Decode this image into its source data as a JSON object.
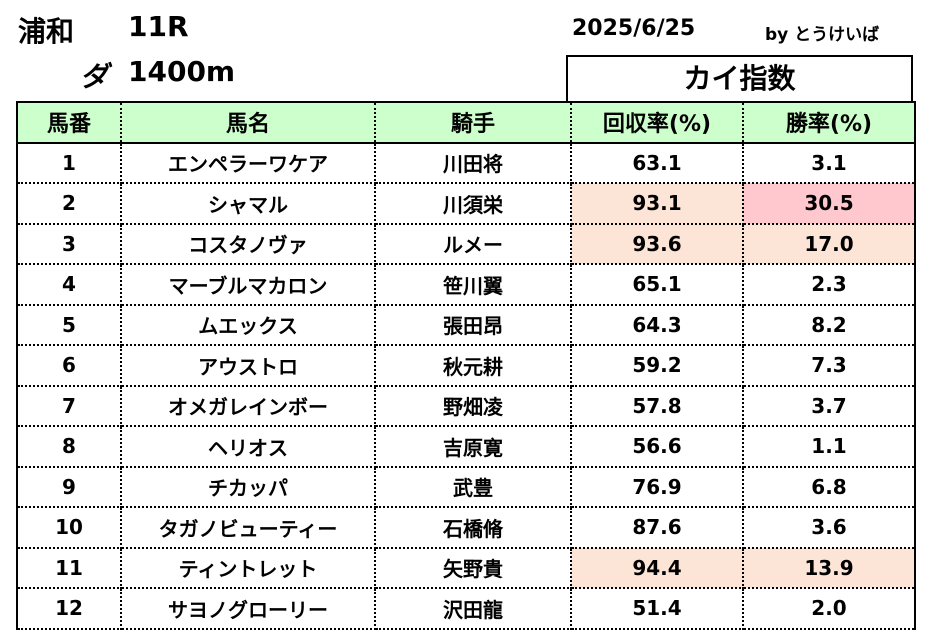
{
  "header": {
    "venue": "浦和",
    "race": "11R",
    "surface": "ダ",
    "distance": "1400m",
    "date": "2025/6/25",
    "byline": "by とうけいば",
    "index_title": "カイ指数"
  },
  "table": {
    "columns": [
      "馬番",
      "馬名",
      "騎手",
      "回収率(%)",
      "勝率(%)"
    ],
    "rows": [
      {
        "no": "1",
        "horse": "エンペラーワケア",
        "jockey": "川田将",
        "recovery": "63.1",
        "win": "3.1",
        "rec_hl": "",
        "win_hl": ""
      },
      {
        "no": "2",
        "horse": "シャマル",
        "jockey": "川須栄",
        "recovery": "93.1",
        "win": "30.5",
        "rec_hl": "hl",
        "win_hl": "hl-strong"
      },
      {
        "no": "3",
        "horse": "コスタノヴァ",
        "jockey": "ルメー",
        "recovery": "93.6",
        "win": "17.0",
        "rec_hl": "hl",
        "win_hl": "hl"
      },
      {
        "no": "4",
        "horse": "マーブルマカロン",
        "jockey": "笹川翼",
        "recovery": "65.1",
        "win": "2.3",
        "rec_hl": "",
        "win_hl": ""
      },
      {
        "no": "5",
        "horse": "ムエックス",
        "jockey": "張田昂",
        "recovery": "64.3",
        "win": "8.2",
        "rec_hl": "",
        "win_hl": ""
      },
      {
        "no": "6",
        "horse": "アウストロ",
        "jockey": "秋元耕",
        "recovery": "59.2",
        "win": "7.3",
        "rec_hl": "",
        "win_hl": ""
      },
      {
        "no": "7",
        "horse": "オメガレインボー",
        "jockey": "野畑凌",
        "recovery": "57.8",
        "win": "3.7",
        "rec_hl": "",
        "win_hl": ""
      },
      {
        "no": "8",
        "horse": "ヘリオス",
        "jockey": "吉原寛",
        "recovery": "56.6",
        "win": "1.1",
        "rec_hl": "",
        "win_hl": ""
      },
      {
        "no": "9",
        "horse": "チカッパ",
        "jockey": "武豊",
        "recovery": "76.9",
        "win": "6.8",
        "rec_hl": "",
        "win_hl": ""
      },
      {
        "no": "10",
        "horse": "タガノビューティー",
        "jockey": "石橋脩",
        "recovery": "87.6",
        "win": "3.6",
        "rec_hl": "",
        "win_hl": ""
      },
      {
        "no": "11",
        "horse": "ティントレット",
        "jockey": "矢野貴",
        "recovery": "94.4",
        "win": "13.9",
        "rec_hl": "hl",
        "win_hl": "hl"
      },
      {
        "no": "12",
        "horse": "サヨノグローリー",
        "jockey": "沢田龍",
        "recovery": "51.4",
        "win": "2.0",
        "rec_hl": "",
        "win_hl": ""
      }
    ]
  }
}
